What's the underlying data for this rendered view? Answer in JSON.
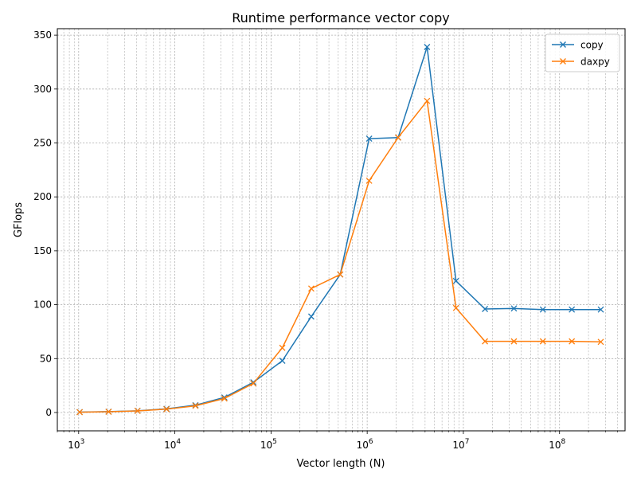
{
  "chart_data": {
    "type": "line",
    "title": "Runtime performance vector copy",
    "xlabel": "Vector length (N)",
    "ylabel": "GFlops",
    "xscale": "log",
    "xlim": [
      600,
      480000000
    ],
    "ylim": [
      -17,
      356
    ],
    "grid": true,
    "legend_placement": "top-right",
    "x_ticks": [
      {
        "value": 1000,
        "base": "10",
        "exp": "3"
      },
      {
        "value": 10000,
        "base": "10",
        "exp": "4"
      },
      {
        "value": 100000,
        "base": "10",
        "exp": "5"
      },
      {
        "value": 1000000,
        "base": "10",
        "exp": "6"
      },
      {
        "value": 10000000,
        "base": "10",
        "exp": "7"
      },
      {
        "value": 100000000,
        "base": "10",
        "exp": "8"
      }
    ],
    "y_ticks": [
      {
        "value": 0,
        "label": "0"
      },
      {
        "value": 50,
        "label": "50"
      },
      {
        "value": 100,
        "label": "100"
      },
      {
        "value": 150,
        "label": "150"
      },
      {
        "value": 200,
        "label": "200"
      },
      {
        "value": 250,
        "label": "250"
      },
      {
        "value": 300,
        "label": "300"
      },
      {
        "value": 350,
        "label": "350"
      }
    ],
    "x": [
      1024,
      2048,
      4096,
      8192,
      16384,
      32768,
      65536,
      131072,
      262144,
      524288,
      1048576,
      2097152,
      4194304,
      8388608,
      16777216,
      33554432,
      67108864,
      134217728,
      268435456
    ],
    "series": [
      {
        "name": "copy",
        "color": "#1f77b4",
        "marker": "x",
        "values": [
          0.4,
          0.8,
          1.6,
          3.4,
          6.8,
          14,
          28,
          48,
          89,
          128,
          254,
          255,
          339,
          122,
          96,
          96.5,
          95.5,
          95.5,
          95.5
        ]
      },
      {
        "name": "daxpy",
        "color": "#ff7f0e",
        "marker": "x",
        "values": [
          0.3,
          0.7,
          1.5,
          3.1,
          6.2,
          13,
          27,
          60,
          115,
          128,
          215,
          255,
          289,
          97,
          66,
          66,
          66,
          66,
          65.5
        ]
      }
    ]
  }
}
